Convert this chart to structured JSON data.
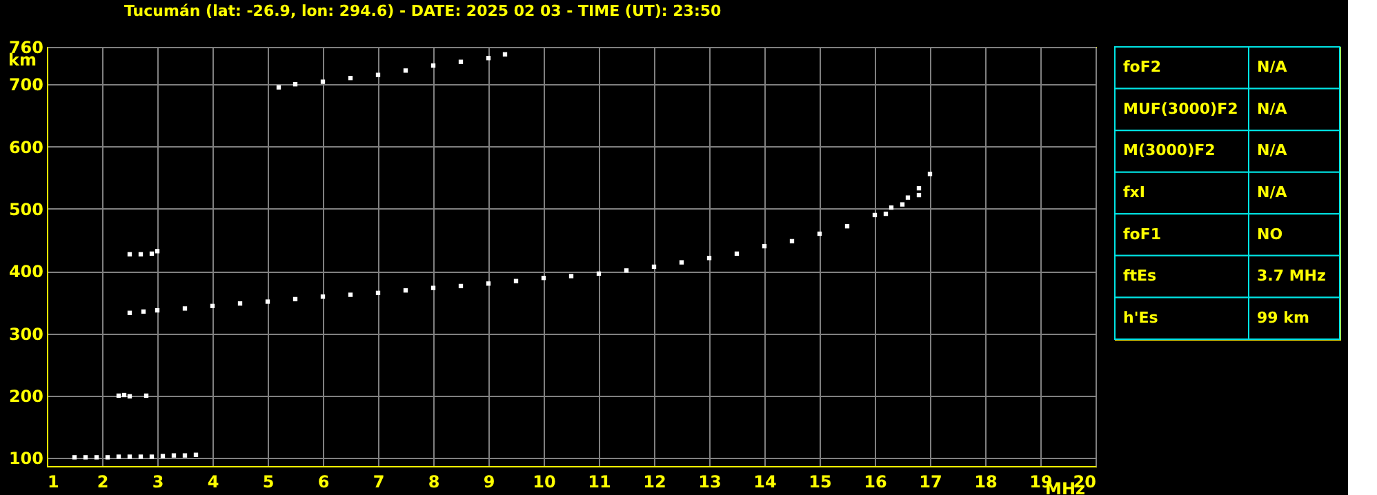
{
  "chart_data": [
    {
      "type": "scatter",
      "title": "Tucumán (lat: -26.9, lon: 294.6) - DATE: 2025 02 03 - TIME (UT): 23:50",
      "xlabel": "MHz",
      "ylabel": "km",
      "xlim": [
        1,
        20
      ],
      "ylim": [
        87,
        760
      ],
      "xticks": [
        1,
        2,
        3,
        4,
        5,
        6,
        7,
        8,
        9,
        10,
        11,
        12,
        13,
        14,
        15,
        16,
        17,
        18,
        19,
        20
      ],
      "yticks": [
        100,
        200,
        300,
        400,
        500,
        600,
        700,
        760
      ],
      "grid": true,
      "marker": "square",
      "legend": false,
      "series": [
        {
          "color": "#ffffff",
          "x": [
            1.5,
            1.7,
            1.9,
            2.1,
            2.3,
            2.5,
            2.7,
            2.9,
            3.1,
            3.3,
            3.5,
            3.7
          ],
          "values": [
            101,
            101,
            101,
            101,
            102,
            102,
            102,
            102,
            103,
            104,
            104,
            105
          ]
        },
        {
          "color": "#ffffff",
          "x": [
            2.3,
            2.4,
            2.5,
            2.8
          ],
          "values": [
            200,
            201,
            199,
            200
          ]
        },
        {
          "color": "#ffffff",
          "x": [
            2.5,
            2.7,
            2.9,
            3.0
          ],
          "values": [
            427,
            427,
            428,
            432
          ]
        },
        {
          "color": "#ffffff",
          "x": [
            2.5,
            2.75,
            3,
            3.5,
            4,
            4.5,
            5,
            5.5,
            6,
            6.5,
            7,
            7.5,
            8,
            8.5,
            9,
            9.5,
            10,
            10.5,
            11,
            11.5,
            12,
            12.5,
            13,
            13.5,
            14,
            14.5,
            15,
            15.5,
            16,
            16.3,
            16.6,
            16.8,
            17
          ],
          "values": [
            333,
            335,
            337,
            340,
            344,
            348,
            351,
            355,
            359,
            362,
            365,
            369,
            373,
            376,
            380,
            384,
            389,
            392,
            396,
            401,
            407,
            414,
            421,
            428,
            440,
            448,
            460,
            472,
            490,
            502,
            518,
            533,
            556
          ]
        },
        {
          "color": "#ffffff",
          "x": [
            16.2,
            16.5,
            16.8
          ],
          "values": [
            492,
            507,
            522
          ]
        },
        {
          "color": "#ffffff",
          "x": [
            5.2,
            5.5,
            6,
            6.5,
            7,
            7.5,
            8,
            8.5,
            9,
            9.3
          ],
          "values": [
            695,
            700,
            704,
            710,
            715,
            722,
            730,
            736,
            742,
            748
          ]
        }
      ]
    },
    {
      "type": "other",
      "annotations": [
        "foF2",
        "N/A",
        "MUF(3000)F2",
        "N/A",
        "M(3000)F2",
        "N/A",
        "fxI",
        "N/A",
        "foF1",
        "NO",
        "ftEs",
        "3.7 MHz",
        "h'Es",
        "99 km"
      ]
    }
  ]
}
